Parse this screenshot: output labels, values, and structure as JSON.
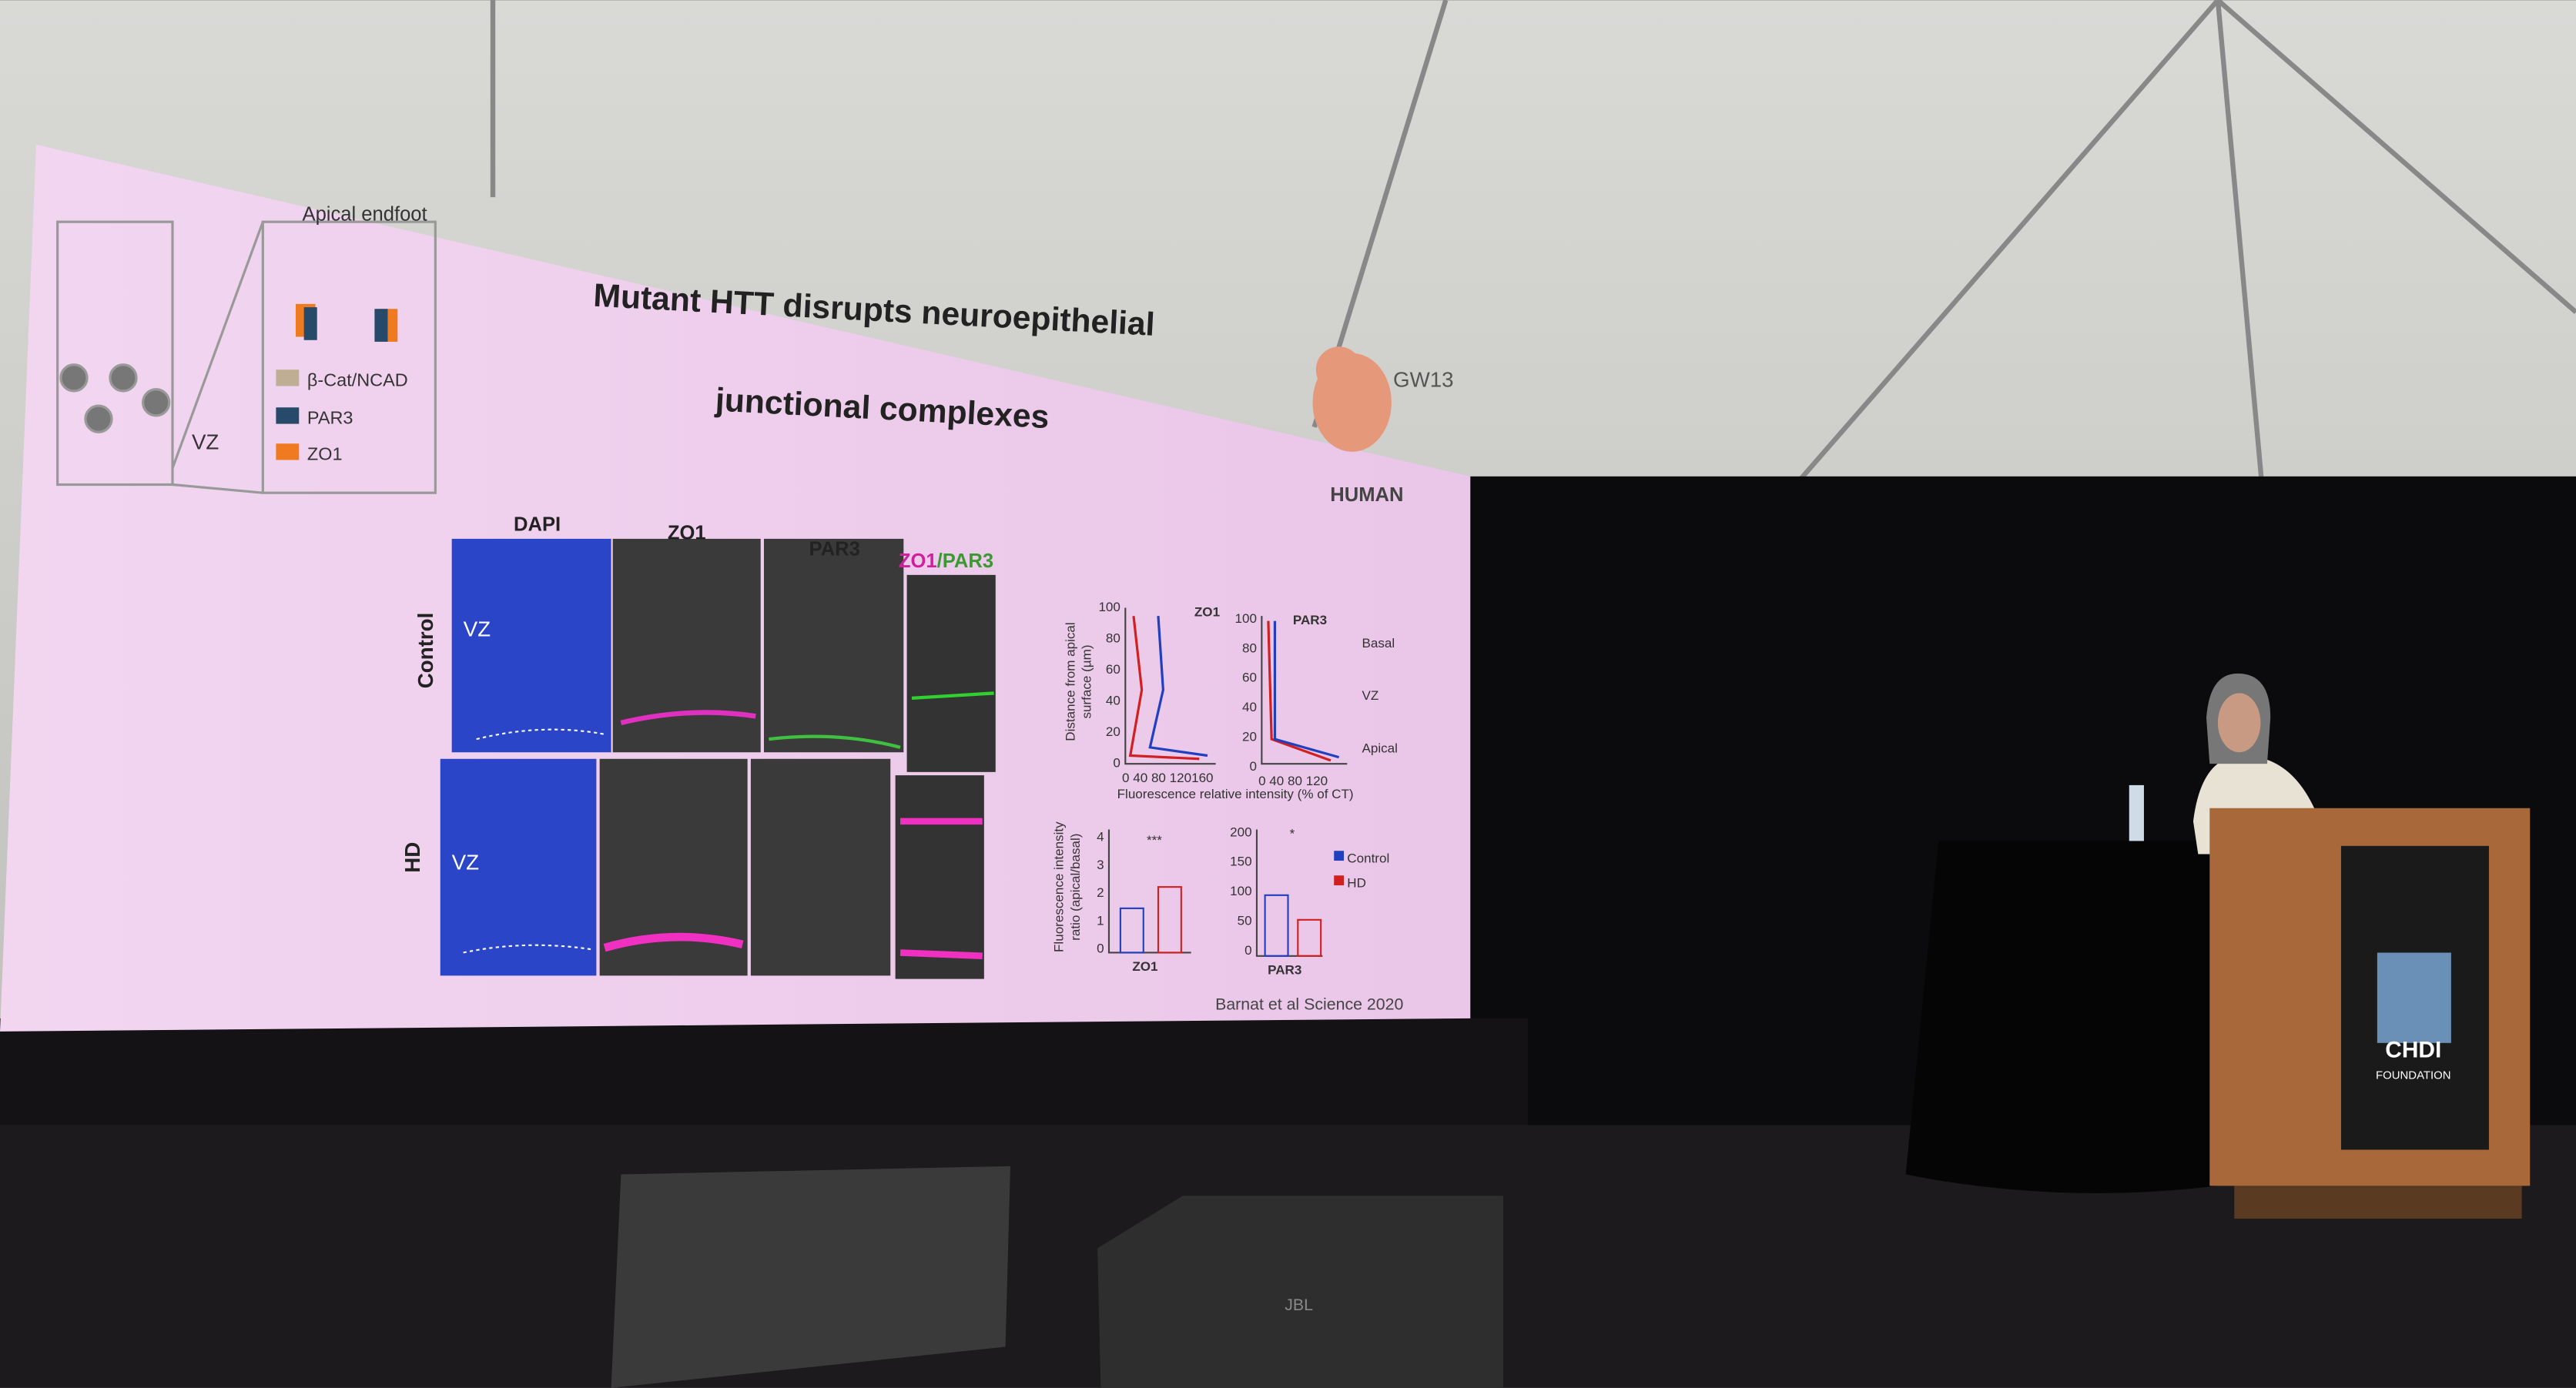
{
  "slide": {
    "title": [
      "Mutant HTT disrupts neuroepithelial",
      "junctional complexes"
    ],
    "apical": "Apical endfoot",
    "vz": "VZ",
    "legend": [
      "β-Cat/NCAD",
      "PAR3",
      "ZO1"
    ],
    "stage": "GW13",
    "species": "HUMAN",
    "panels": [
      "DAPI",
      "ZO1",
      "PAR3"
    ],
    "merge": [
      "ZO1",
      "/PAR3"
    ],
    "rows": [
      "Control",
      "HD"
    ],
    "panel_vz": "VZ",
    "profile": {
      "titles": [
        "ZO1",
        "PAR3"
      ],
      "ylabel": [
        "Distance from apical",
        "surface (µm)"
      ],
      "xlabel": "Fluorescence relative intensity (% of CT)",
      "yticks": [
        100,
        80,
        60,
        40,
        20,
        0
      ],
      "xticks_a": "0 40 80 120160",
      "xticks_b": "0 40 80 120",
      "zones": [
        "Basal",
        "VZ",
        "Apical"
      ]
    },
    "bars": {
      "ylabel": [
        "Fluorescence intensity",
        "ratio (apical/basal)"
      ],
      "yticks_a": [
        4,
        3,
        2,
        1,
        0
      ],
      "yticks_b": [
        200,
        150,
        100,
        50,
        0
      ],
      "sig": [
        "***",
        "*"
      ],
      "names": [
        "ZO1",
        "PAR3"
      ],
      "legend": [
        "Control",
        "HD"
      ]
    },
    "citation": "Barnat et al Science 2020"
  },
  "podium": {
    "logo": "CHDI",
    "sub": "FOUNDATION"
  },
  "speaker_brand": "JBL"
}
